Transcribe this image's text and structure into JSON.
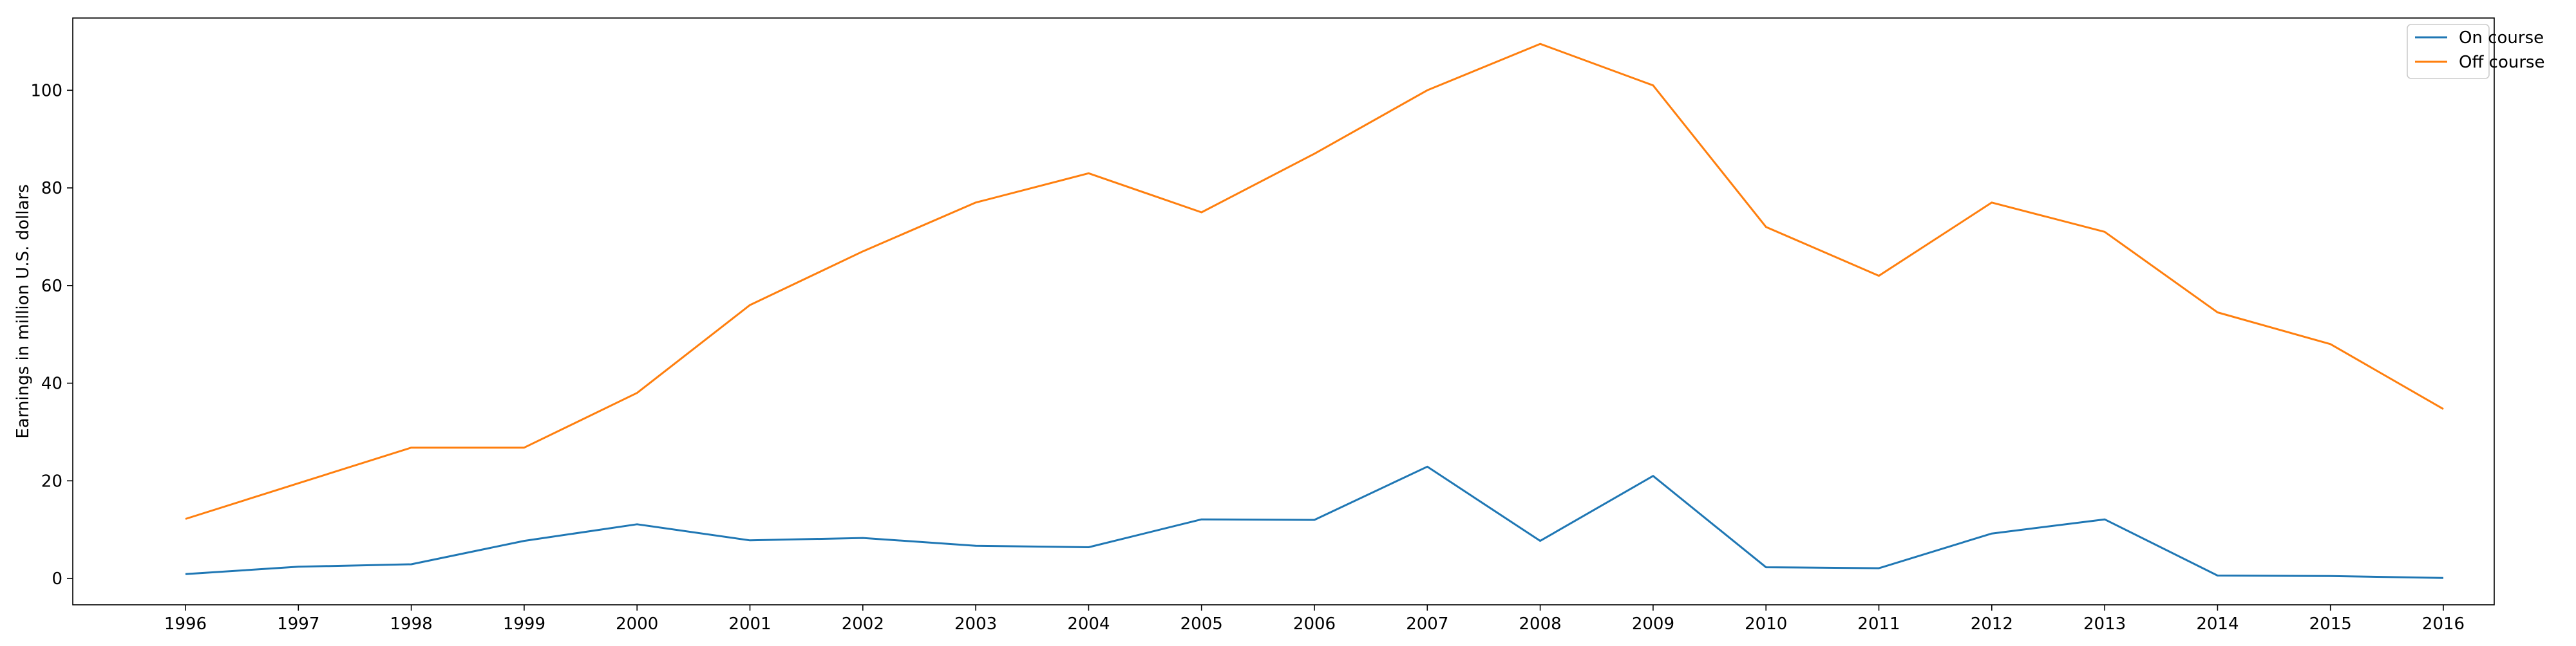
{
  "chart_data": {
    "type": "line",
    "title": "",
    "xlabel": "",
    "ylabel": "Earnings in million U.S. dollars",
    "categories": [
      "1996",
      "1997",
      "1998",
      "1999",
      "2000",
      "2001",
      "2002",
      "2003",
      "2004",
      "2005",
      "2006",
      "2007",
      "2008",
      "2009",
      "2010",
      "2011",
      "2012",
      "2013",
      "2014",
      "2015",
      "2016"
    ],
    "series": [
      {
        "name": "On course",
        "color": "#1f77b4",
        "values": [
          0.9,
          2.4,
          2.9,
          7.7,
          11.1,
          7.8,
          8.3,
          6.7,
          6.4,
          12.1,
          12.0,
          22.9,
          7.7,
          21.0,
          2.3,
          2.1,
          9.2,
          12.1,
          0.6,
          0.5,
          0.1
        ]
      },
      {
        "name": "Off course",
        "color": "#ff7f0e",
        "values": [
          12.2,
          19.5,
          26.8,
          26.8,
          38.0,
          56.0,
          67.0,
          77.0,
          83.0,
          75.0,
          87.0,
          100.0,
          109.5,
          101.0,
          72.0,
          62.0,
          77.0,
          71.0,
          54.5,
          48.0,
          34.7
        ]
      }
    ],
    "yticks": [
      0,
      20,
      40,
      60,
      80,
      100
    ],
    "ylim": [
      -5.4,
      114.8
    ],
    "grid": false,
    "legend": "top-right"
  }
}
